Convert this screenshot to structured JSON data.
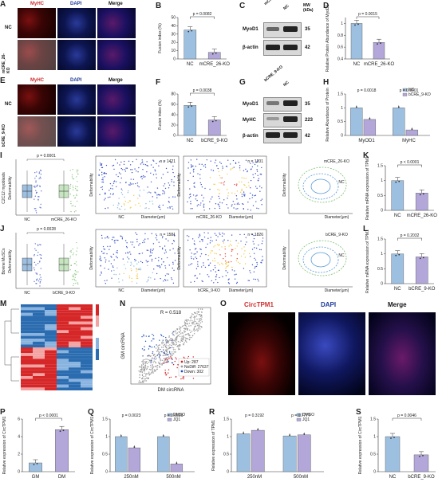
{
  "panels": {
    "A": {
      "label": "A",
      "rows": [
        "NC",
        "mCRE_26-KO"
      ],
      "cols": [
        "MyHC",
        "DAPI",
        "Merge"
      ]
    },
    "E": {
      "label": "E",
      "rows": [
        "NC",
        "bCRE_9-KO"
      ],
      "cols": [
        "MyHC",
        "DAPI",
        "Merge"
      ]
    },
    "B": {
      "label": "B",
      "ylabel": "Fusion index (%)",
      "p": "p = 0.0082"
    },
    "F": {
      "label": "F",
      "ylabel": "Fusion index (%)",
      "p": "p = 0.0038"
    },
    "C": {
      "label": "C",
      "lanes": [
        "mCRE_26-KO",
        "NC"
      ],
      "bands": [
        "MyoD1",
        "β-actin"
      ],
      "mw": [
        "35",
        "42"
      ],
      "mw_header": "MW\n(kDa)"
    },
    "G": {
      "label": "G",
      "lanes": [
        "bCRE_9-KO",
        "NC"
      ],
      "bands": [
        "MyoD1",
        "MyHC",
        "β-actin"
      ],
      "mw": [
        "35",
        "223",
        "42"
      ]
    },
    "D": {
      "label": "D",
      "ylabel": "Relative Protein Abundance of MyoD1",
      "p": "p = 0.0015"
    },
    "H": {
      "label": "H",
      "ylabel": "Relative Abundance of Protein",
      "p1": "p = 0.0018",
      "p2": "p = 0.0001",
      "legend": [
        "NC",
        "bCRE_9-KO"
      ]
    },
    "I": {
      "label": "I",
      "ylabel_top": "C2C12 myoblasts",
      "ylabel": "Deformability",
      "p": "p = 0.0001",
      "n1": "n = 1421",
      "n2": "n = 1201",
      "xlabel": "Diameter(μm)",
      "title": "mCRE_26-KO"
    },
    "J": {
      "label": "J",
      "ylabel_top": "Bovine MuSCs",
      "ylabel": "Deformability",
      "p": "p = 0.0028",
      "n1": "n = 1581",
      "n2": "n = 1826",
      "xlabel": "Diameter(μm)",
      "title": "bCRE_9-KO"
    },
    "K": {
      "label": "K",
      "ylabel": "Relative mRNA expression of TPM1",
      "p": "p < 0.0001"
    },
    "L": {
      "label": "L",
      "ylabel": "Relative mRNA expression of TPM1",
      "p": "p = 0.2032"
    },
    "M": {
      "label": "M"
    },
    "N": {
      "label": "N",
      "r": "R = 0.518",
      "xlabel": "DM circRNA",
      "ylabel": "GM circRNA",
      "legend": [
        "Up: 287",
        "NoDiff: 27637",
        "Down: 302"
      ]
    },
    "O": {
      "label": "O",
      "cols": [
        "CircTPM1",
        "DAPI",
        "Merge"
      ]
    },
    "P": {
      "label": "P",
      "ylabel": "Relative expression of CircTPM1",
      "p": "p < 0.0001"
    },
    "Q": {
      "label": "Q",
      "ylabel": "Relative expression of CircTPM1",
      "p1": "p = 0.0023",
      "p2": "p = 0.0021",
      "legend": [
        "DMSO",
        "JQ1"
      ]
    },
    "R": {
      "label": "R",
      "ylabel": "Relative expression of TPM1",
      "p1": "p = 0.3192",
      "p2": "p = 0.7777",
      "legend": [
        "DMSO",
        "JQ1"
      ]
    },
    "S": {
      "label": "S",
      "ylabel": "Relative expression of CircTPM1",
      "p": "p = 0.0046"
    }
  },
  "chart_data": [
    {
      "id": "B",
      "type": "bar",
      "categories": [
        "NC",
        "mCRE_26-KO"
      ],
      "values": [
        35,
        8
      ],
      "ylim": [
        0,
        50
      ],
      "yticks": [
        0,
        10,
        20,
        30,
        40,
        50
      ]
    },
    {
      "id": "F",
      "type": "bar",
      "categories": [
        "NC",
        "bCRE_9-KO"
      ],
      "values": [
        58,
        30
      ],
      "ylim": [
        0,
        80
      ],
      "yticks": [
        0,
        20,
        40,
        60,
        80
      ]
    },
    {
      "id": "D",
      "type": "bar",
      "categories": [
        "NC",
        "mCRE_26-KO"
      ],
      "values": [
        1.0,
        0.68
      ],
      "ylim": [
        0.4,
        1.1
      ],
      "yticks": [
        0.4,
        0.6,
        0.8,
        1.0
      ]
    },
    {
      "id": "H",
      "type": "bar",
      "categories": [
        "MyOD1",
        "MyHC"
      ],
      "series": [
        {
          "name": "NC",
          "values": [
            1.0,
            1.0
          ]
        },
        {
          "name": "bCRE_9-KO",
          "values": [
            0.58,
            0.2
          ]
        }
      ],
      "ylim": [
        0,
        1.5
      ],
      "yticks": [
        0,
        0.5,
        1.0,
        1.5
      ]
    },
    {
      "id": "K",
      "type": "bar",
      "categories": [
        "NC",
        "mCRE_26-KO"
      ],
      "values": [
        1.0,
        0.58
      ],
      "ylim": [
        0,
        1.5
      ],
      "yticks": [
        0,
        0.5,
        1.0,
        1.5
      ]
    },
    {
      "id": "L",
      "type": "bar",
      "categories": [
        "NC",
        "bCRE_9-KO"
      ],
      "values": [
        1.0,
        0.9
      ],
      "ylim": [
        0,
        1.5
      ],
      "yticks": [
        0,
        0.5,
        1.0,
        1.5
      ]
    },
    {
      "id": "P",
      "type": "bar",
      "categories": [
        "GM",
        "DM"
      ],
      "values": [
        1.0,
        4.8
      ],
      "ylim": [
        0,
        6
      ],
      "yticks": [
        0,
        2,
        4,
        6
      ]
    },
    {
      "id": "Q",
      "type": "bar",
      "categories": [
        "250nM",
        "500nM"
      ],
      "series": [
        {
          "name": "DMSO",
          "values": [
            1.0,
            1.0
          ]
        },
        {
          "name": "JQ1",
          "values": [
            0.68,
            0.22
          ]
        }
      ],
      "ylim": [
        0,
        1.5
      ],
      "yticks": [
        0,
        0.5,
        1.0,
        1.5
      ]
    },
    {
      "id": "R",
      "type": "bar",
      "categories": [
        "250nM",
        "500nM"
      ],
      "series": [
        {
          "name": "DMSO",
          "values": [
            1.08,
            1.02
          ]
        },
        {
          "name": "JQ1",
          "values": [
            1.18,
            1.05
          ]
        }
      ],
      "ylim": [
        0,
        1.5
      ],
      "yticks": [
        0,
        0.5,
        1.0,
        1.5
      ]
    },
    {
      "id": "S",
      "type": "bar",
      "categories": [
        "NC",
        "bCRE_9-KO"
      ],
      "values": [
        1.0,
        0.48
      ],
      "ylim": [
        0,
        1.5
      ],
      "yticks": [
        0,
        0.5,
        1.0,
        1.5
      ]
    }
  ],
  "colors": {
    "nc": "#9dbfe0",
    "ko": "#b3a6d8",
    "light": "#cfdcef",
    "red": "#d23a3a",
    "blue": "#3f58c8",
    "gray": "#9a9a9a"
  }
}
